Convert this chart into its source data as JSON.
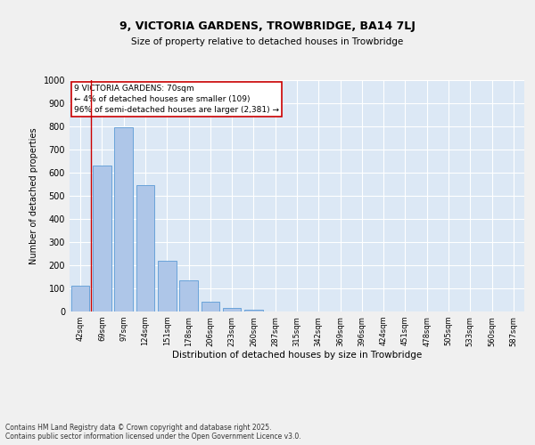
{
  "title_line1": "9, VICTORIA GARDENS, TROWBRIDGE, BA14 7LJ",
  "title_line2": "Size of property relative to detached houses in Trowbridge",
  "xlabel": "Distribution of detached houses by size in Trowbridge",
  "ylabel": "Number of detached properties",
  "categories": [
    "42sqm",
    "69sqm",
    "97sqm",
    "124sqm",
    "151sqm",
    "178sqm",
    "206sqm",
    "233sqm",
    "260sqm",
    "287sqm",
    "315sqm",
    "342sqm",
    "369sqm",
    "396sqm",
    "424sqm",
    "451sqm",
    "478sqm",
    "505sqm",
    "533sqm",
    "560sqm",
    "587sqm"
  ],
  "values": [
    110,
    630,
    795,
    545,
    220,
    135,
    42,
    15,
    8,
    0,
    0,
    0,
    0,
    0,
    0,
    0,
    0,
    0,
    0,
    0,
    0
  ],
  "bar_color": "#aec6e8",
  "bar_edge_color": "#5b9bd5",
  "annotation_text_line1": "9 VICTORIA GARDENS: 70sqm",
  "annotation_text_line2": "← 4% of detached houses are smaller (109)",
  "annotation_text_line3": "96% of semi-detached houses are larger (2,381) →",
  "annotation_box_facecolor": "#ffffff",
  "annotation_box_edgecolor": "#cc0000",
  "vline_color": "#cc0000",
  "vline_x": 0.5,
  "ylim": [
    0,
    1000
  ],
  "yticks": [
    0,
    100,
    200,
    300,
    400,
    500,
    600,
    700,
    800,
    900,
    1000
  ],
  "bg_color": "#dce8f5",
  "grid_color": "#ffffff",
  "fig_bg_color": "#f0f0f0",
  "footer_line1": "Contains HM Land Registry data © Crown copyright and database right 2025.",
  "footer_line2": "Contains public sector information licensed under the Open Government Licence v3.0."
}
